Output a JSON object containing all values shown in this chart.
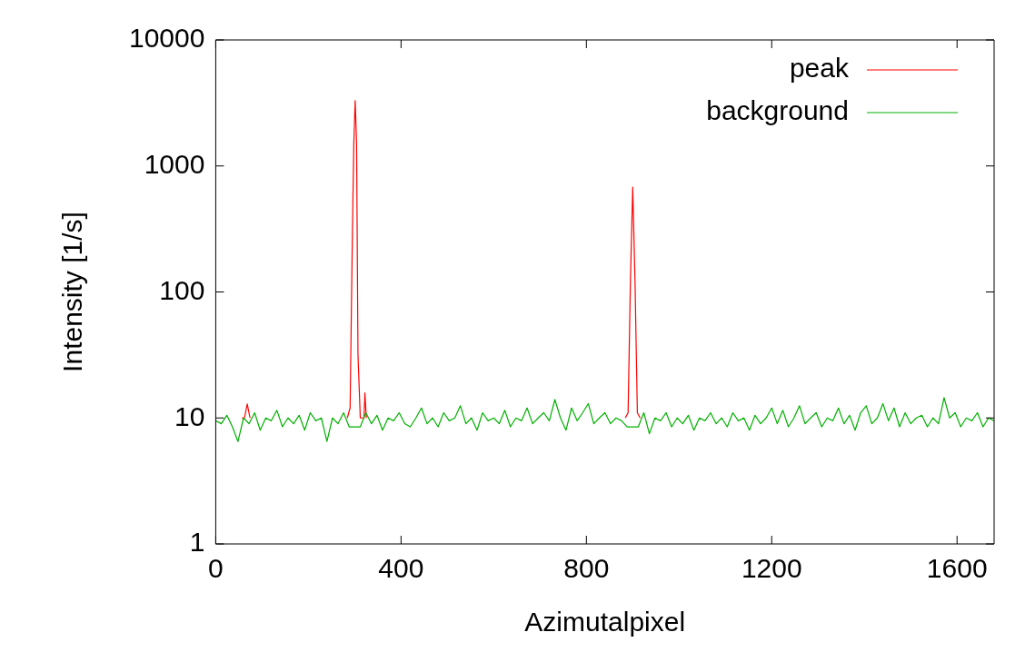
{
  "chart_data": {
    "type": "line",
    "xlabel": "Azimutalpixel",
    "ylabel": "Intensity [1/s]",
    "log": "y",
    "grid": false,
    "legend": "top right",
    "marker": "none",
    "line_style": "solid",
    "xlim": [
      0,
      1680
    ],
    "xticks": [
      0,
      400,
      800,
      1200,
      1600
    ],
    "ylim": [
      1,
      10000
    ],
    "yticks": [
      1,
      10,
      100,
      1000,
      10000
    ],
    "series": [
      {
        "name": "peak",
        "color": "#ff0000",
        "x": [
          56,
          62,
          68,
          74,
          80,
          284,
          290,
          295,
          298,
          301,
          304,
          307,
          309,
          312,
          318,
          320,
          322,
          325,
          330,
          884,
          890,
          895,
          900,
          905,
          910,
          916
        ],
        "values": [
          10,
          10,
          12.9,
          10,
          null,
          10,
          12,
          300,
          1500,
          3300,
          1500,
          32,
          20,
          10,
          10,
          10,
          15.8,
          10,
          null,
          10,
          11,
          120,
          680,
          120,
          11,
          10
        ]
      },
      {
        "name": "background",
        "color": "#00b000",
        "x": [
          0,
          12,
          24,
          36,
          48,
          60,
          72,
          84,
          96,
          108,
          120,
          132,
          144,
          156,
          168,
          180,
          192,
          204,
          216,
          228,
          240,
          252,
          264,
          276,
          288,
          300,
          312,
          324,
          336,
          348,
          360,
          372,
          384,
          396,
          408,
          420,
          432,
          444,
          456,
          468,
          480,
          492,
          504,
          516,
          528,
          540,
          552,
          564,
          576,
          588,
          600,
          612,
          624,
          636,
          648,
          660,
          672,
          684,
          696,
          708,
          720,
          732,
          744,
          756,
          768,
          780,
          792,
          804,
          816,
          828,
          840,
          852,
          864,
          876,
          888,
          900,
          912,
          924,
          936,
          948,
          960,
          972,
          984,
          996,
          1008,
          1020,
          1032,
          1044,
          1056,
          1068,
          1080,
          1092,
          1104,
          1116,
          1128,
          1140,
          1152,
          1164,
          1176,
          1188,
          1200,
          1212,
          1224,
          1236,
          1248,
          1260,
          1272,
          1284,
          1296,
          1308,
          1320,
          1332,
          1344,
          1356,
          1368,
          1380,
          1392,
          1404,
          1416,
          1428,
          1440,
          1452,
          1464,
          1476,
          1488,
          1500,
          1512,
          1524,
          1536,
          1548,
          1560,
          1572,
          1584,
          1596,
          1608,
          1620,
          1632,
          1644,
          1656,
          1668,
          1680
        ],
        "values": [
          9.5,
          9,
          10.5,
          8.5,
          6.5,
          10,
          9,
          11,
          8,
          10,
          9.5,
          11.5,
          8.5,
          10,
          9,
          10.5,
          8,
          11,
          9.5,
          10,
          6.5,
          10,
          9,
          11,
          8.5,
          8.5,
          8.5,
          11,
          9,
          10.5,
          8,
          10,
          9.5,
          11,
          9,
          8.5,
          10,
          12,
          9,
          10,
          8.5,
          11,
          9.5,
          10,
          12.5,
          9,
          10,
          8,
          11,
          9.5,
          10,
          9,
          11.5,
          8.5,
          10,
          9.5,
          12,
          9,
          10,
          11,
          9.5,
          14,
          10,
          8,
          12,
          9.5,
          11,
          13,
          9,
          10,
          11,
          9,
          10,
          9.5,
          8.5,
          8.5,
          8.5,
          11,
          7.5,
          10,
          9.5,
          11,
          8.5,
          10,
          9,
          10.5,
          8,
          10,
          9.5,
          11,
          9,
          10,
          8.5,
          11,
          9.5,
          10,
          8,
          10.5,
          9,
          10,
          12,
          9,
          11.5,
          8.5,
          10,
          12.5,
          9,
          10,
          11,
          8.5,
          10,
          9.5,
          12,
          9,
          10.5,
          8,
          11,
          12.5,
          9,
          10,
          13,
          9.5,
          12,
          8.5,
          11,
          9,
          10,
          10.5,
          8.5,
          10,
          9,
          14.5,
          10,
          11,
          8.5,
          10,
          9.5,
          11,
          8.5,
          10,
          9.5
        ]
      }
    ]
  }
}
